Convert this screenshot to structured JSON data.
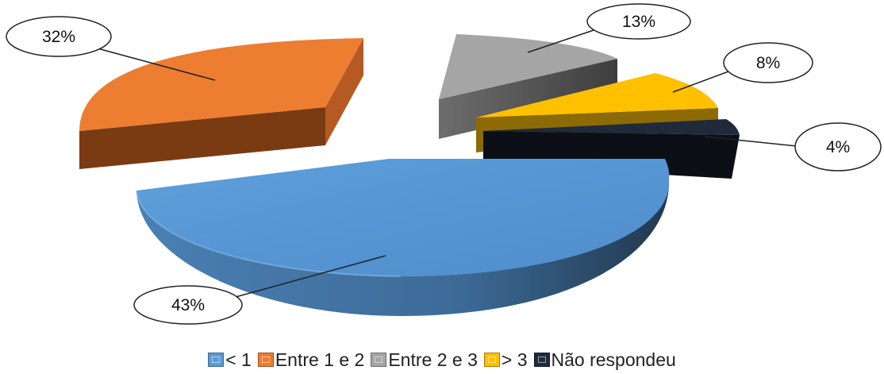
{
  "chart_data": {
    "type": "pie",
    "title": "",
    "style": "3d-exploded",
    "legend_position": "bottom",
    "slices": [
      {
        "name": "< 1",
        "value": 43,
        "label": "43%",
        "color": "#5B9BD5"
      },
      {
        "name": "Entre 1 e 2",
        "value": 32,
        "label": "32%",
        "color": "#ED7D31"
      },
      {
        "name": "Entre 2 e 3",
        "value": 13,
        "label": "13%",
        "color": "#A5A5A5"
      },
      {
        "name": "> 3",
        "value": 8,
        "label": "8%",
        "color": "#FFC000"
      },
      {
        "name": "Não respondeu",
        "value": 4,
        "label": "4%",
        "color": "#1F2A3A"
      }
    ]
  }
}
